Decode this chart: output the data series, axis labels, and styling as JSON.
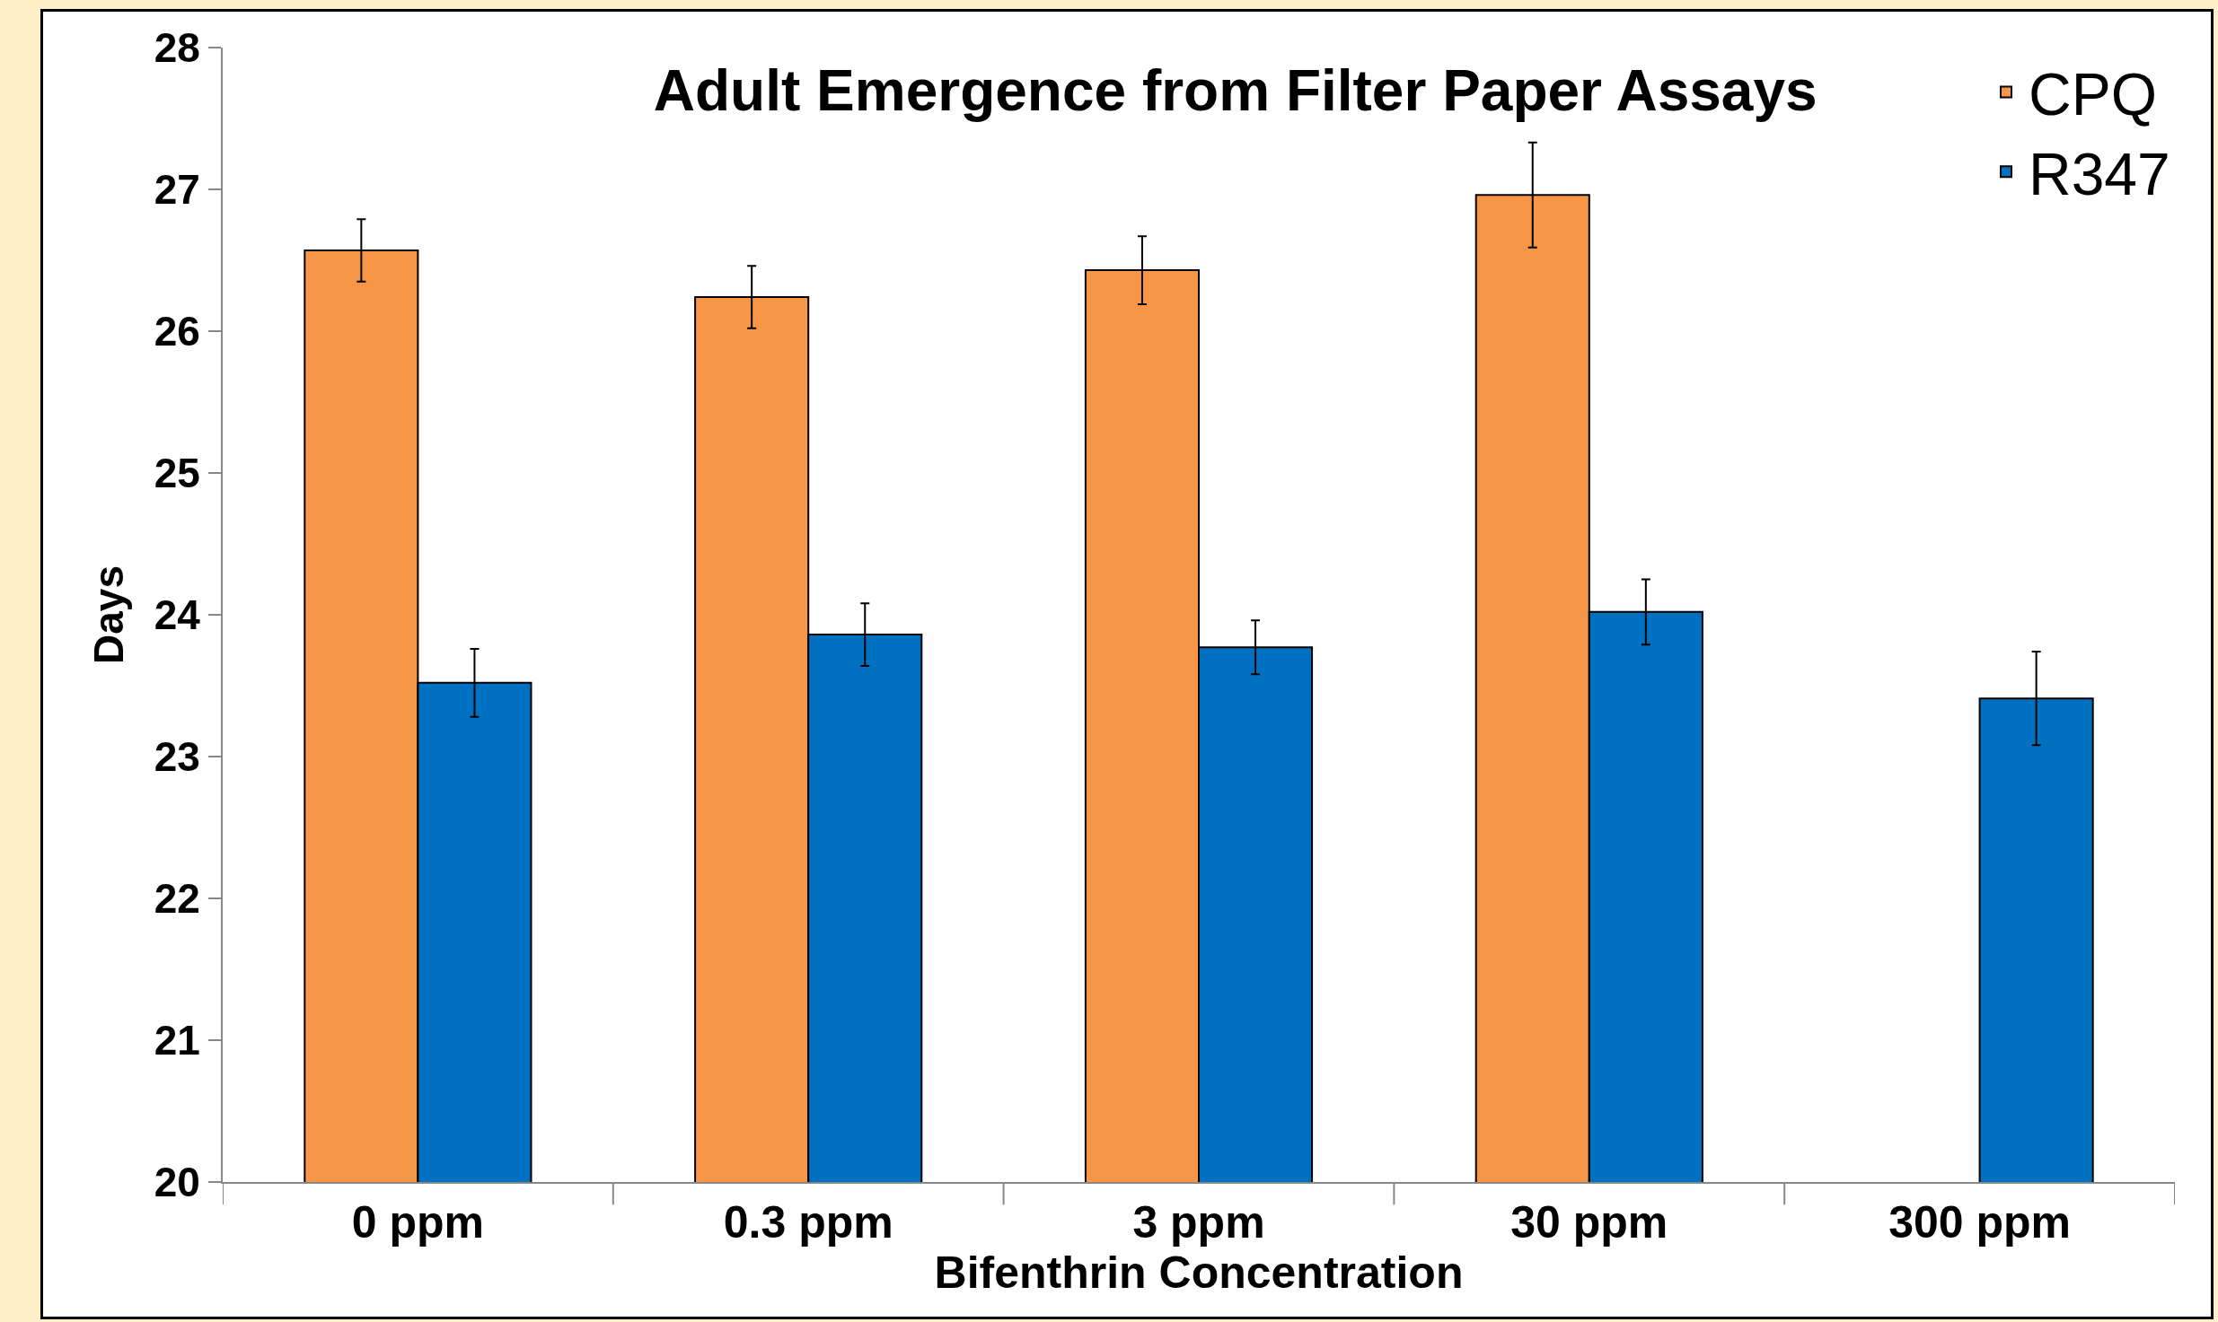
{
  "chart_data": {
    "type": "bar",
    "title": "Adult Emergence from Filter Paper Assays",
    "xlabel": "Bifenthrin Concentration",
    "ylabel": "Days",
    "categories": [
      "0 ppm",
      "0.3 ppm",
      "3 ppm",
      "30 ppm",
      "300 ppm"
    ],
    "series": [
      {
        "name": "CPQ",
        "color": "#f79646",
        "values": [
          26.57,
          26.24,
          26.43,
          26.96,
          null
        ],
        "errors": [
          0.22,
          0.22,
          0.24,
          0.37,
          null
        ]
      },
      {
        "name": "R347",
        "color": "#0070c0",
        "values": [
          23.52,
          23.86,
          23.77,
          24.02,
          23.41
        ],
        "errors": [
          0.24,
          0.22,
          0.19,
          0.23,
          0.33
        ]
      }
    ],
    "ylim": [
      20,
      28
    ],
    "yticks": [
      20,
      21,
      22,
      23,
      24,
      25,
      26,
      27,
      28
    ],
    "grid": false,
    "legend": "top right"
  }
}
